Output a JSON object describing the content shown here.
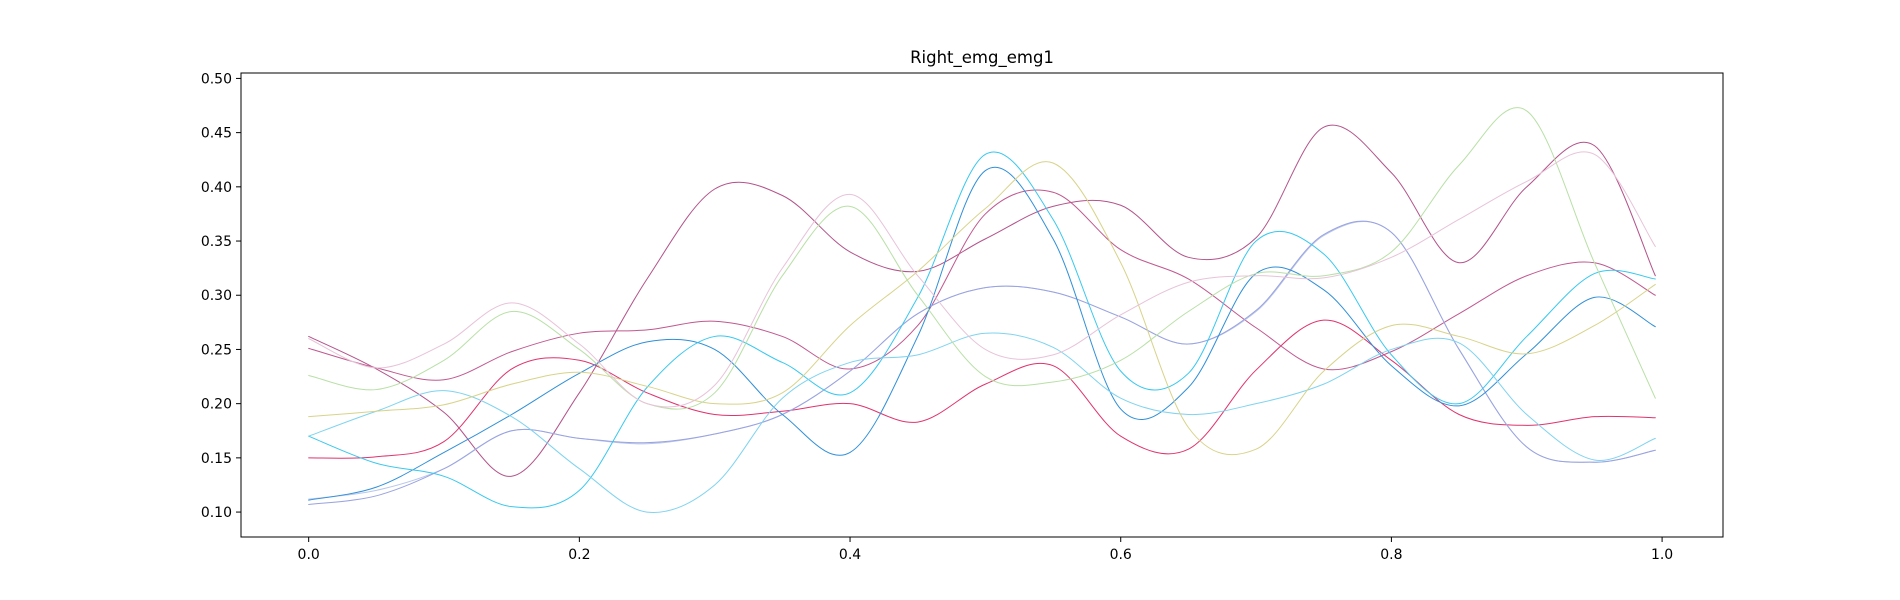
{
  "chart_data": {
    "type": "line",
    "title": "Right_emg_emg1",
    "xlabel": "",
    "ylabel": "",
    "xlim": [
      -0.05,
      1.045
    ],
    "ylim": [
      0.077,
      0.505
    ],
    "xticks": [
      "0.0",
      "0.2",
      "0.4",
      "0.6",
      "0.8",
      "1.0"
    ],
    "yticks": [
      "0.10",
      "0.15",
      "0.20",
      "0.25",
      "0.30",
      "0.35",
      "0.40",
      "0.45",
      "0.50"
    ],
    "grid": false,
    "legend": "none",
    "series": [
      {
        "color": "#e0336e",
        "x": [
          0.0,
          0.05,
          0.1,
          0.15,
          0.2,
          0.25,
          0.3,
          0.35,
          0.4,
          0.45,
          0.5,
          0.55,
          0.6,
          0.65,
          0.7,
          0.75,
          0.8,
          0.85,
          0.9,
          0.95,
          0.995
        ],
        "y": [
          0.15,
          0.151,
          0.165,
          0.232,
          0.24,
          0.21,
          0.19,
          0.193,
          0.2,
          0.183,
          0.218,
          0.235,
          0.17,
          0.158,
          0.231,
          0.277,
          0.24,
          0.19,
          0.18,
          0.188,
          0.187
        ]
      },
      {
        "color": "#b3538a",
        "x": [
          0.0,
          0.05,
          0.1,
          0.15,
          0.2,
          0.25,
          0.3,
          0.35,
          0.4,
          0.45,
          0.5,
          0.55,
          0.6,
          0.65,
          0.7,
          0.75,
          0.8,
          0.85,
          0.9,
          0.95,
          0.995
        ],
        "y": [
          0.262,
          0.232,
          0.192,
          0.133,
          0.21,
          0.315,
          0.398,
          0.392,
          0.34,
          0.322,
          0.352,
          0.382,
          0.383,
          0.335,
          0.353,
          0.455,
          0.413,
          0.33,
          0.4,
          0.438,
          0.318
        ]
      },
      {
        "color": "#c0578f",
        "x": [
          0.0,
          0.05,
          0.1,
          0.15,
          0.2,
          0.25,
          0.3,
          0.35,
          0.4,
          0.45,
          0.5,
          0.55,
          0.6,
          0.65,
          0.7,
          0.75,
          0.8,
          0.85,
          0.9,
          0.95,
          0.995
        ],
        "y": [
          0.251,
          0.233,
          0.222,
          0.248,
          0.265,
          0.268,
          0.276,
          0.262,
          0.232,
          0.272,
          0.375,
          0.395,
          0.342,
          0.315,
          0.27,
          0.232,
          0.248,
          0.283,
          0.318,
          0.33,
          0.3
        ]
      },
      {
        "color": "#b8c6ea",
        "x": [
          0.0,
          0.05,
          0.1,
          0.15,
          0.2,
          0.25,
          0.3,
          0.35,
          0.4,
          0.45,
          0.5,
          0.55,
          0.6,
          0.65,
          0.7,
          0.75,
          0.8,
          0.85,
          0.9,
          0.95,
          0.995
        ],
        "y": [
          0.112,
          0.12,
          0.14,
          0.175,
          0.168,
          0.163,
          0.172,
          0.19,
          0.23,
          0.283,
          0.307,
          0.303,
          0.28,
          0.255,
          0.285,
          0.355,
          0.358,
          0.25,
          0.16,
          0.146,
          0.157
        ]
      },
      {
        "color": "#9aa3e0",
        "x": [
          0.0,
          0.05,
          0.1,
          0.15,
          0.2,
          0.25,
          0.3,
          0.35,
          0.4,
          0.45,
          0.5,
          0.55,
          0.6,
          0.65,
          0.7,
          0.75,
          0.8,
          0.85,
          0.9,
          0.95,
          0.995
        ],
        "y": [
          0.107,
          0.115,
          0.14,
          0.175,
          0.168,
          0.164,
          0.172,
          0.19,
          0.23,
          0.283,
          0.307,
          0.303,
          0.28,
          0.255,
          0.286,
          0.356,
          0.358,
          0.25,
          0.16,
          0.146,
          0.157
        ]
      },
      {
        "color": "#2f8fd8",
        "x": [
          0.0,
          0.05,
          0.1,
          0.15,
          0.2,
          0.25,
          0.3,
          0.35,
          0.4,
          0.45,
          0.5,
          0.55,
          0.6,
          0.65,
          0.7,
          0.75,
          0.8,
          0.85,
          0.9,
          0.95,
          0.995
        ],
        "y": [
          0.111,
          0.123,
          0.155,
          0.19,
          0.228,
          0.257,
          0.25,
          0.19,
          0.155,
          0.262,
          0.415,
          0.352,
          0.195,
          0.215,
          0.32,
          0.305,
          0.235,
          0.198,
          0.246,
          0.298,
          0.271
        ]
      },
      {
        "color": "#37c8ef",
        "x": [
          0.0,
          0.05,
          0.1,
          0.15,
          0.2,
          0.25,
          0.3,
          0.35,
          0.4,
          0.45,
          0.5,
          0.55,
          0.6,
          0.65,
          0.7,
          0.75,
          0.8,
          0.85,
          0.9,
          0.95,
          0.995
        ],
        "y": [
          0.17,
          0.145,
          0.133,
          0.105,
          0.12,
          0.215,
          0.262,
          0.238,
          0.21,
          0.298,
          0.43,
          0.37,
          0.23,
          0.228,
          0.35,
          0.338,
          0.245,
          0.2,
          0.262,
          0.32,
          0.315
        ]
      },
      {
        "color": "#7fd3f0",
        "x": [
          0.0,
          0.05,
          0.1,
          0.15,
          0.2,
          0.25,
          0.3,
          0.35,
          0.4,
          0.45,
          0.5,
          0.55,
          0.6,
          0.65,
          0.7,
          0.75,
          0.8,
          0.85,
          0.9,
          0.95,
          0.995
        ],
        "y": [
          0.17,
          0.193,
          0.212,
          0.188,
          0.14,
          0.1,
          0.125,
          0.205,
          0.238,
          0.245,
          0.265,
          0.252,
          0.205,
          0.19,
          0.2,
          0.218,
          0.25,
          0.256,
          0.19,
          0.148,
          0.168
        ]
      },
      {
        "color": "#d8d38a",
        "x": [
          0.0,
          0.05,
          0.1,
          0.15,
          0.2,
          0.25,
          0.3,
          0.35,
          0.4,
          0.45,
          0.5,
          0.55,
          0.6,
          0.65,
          0.7,
          0.75,
          0.8,
          0.85,
          0.9,
          0.95,
          0.995
        ],
        "y": [
          0.188,
          0.193,
          0.199,
          0.218,
          0.229,
          0.216,
          0.2,
          0.21,
          0.272,
          0.322,
          0.38,
          0.422,
          0.33,
          0.178,
          0.158,
          0.23,
          0.272,
          0.262,
          0.246,
          0.272,
          0.31
        ]
      },
      {
        "color": "#b8e0a6",
        "x": [
          0.0,
          0.05,
          0.1,
          0.15,
          0.2,
          0.25,
          0.3,
          0.35,
          0.4,
          0.45,
          0.5,
          0.55,
          0.6,
          0.65,
          0.7,
          0.75,
          0.8,
          0.85,
          0.9,
          0.95,
          0.995
        ],
        "y": [
          0.226,
          0.213,
          0.24,
          0.285,
          0.25,
          0.2,
          0.21,
          0.318,
          0.382,
          0.3,
          0.225,
          0.22,
          0.24,
          0.285,
          0.32,
          0.318,
          0.34,
          0.42,
          0.47,
          0.33,
          0.205
        ]
      },
      {
        "color": "#e8c3d8",
        "x": [
          0.0,
          0.05,
          0.1,
          0.15,
          0.2,
          0.25,
          0.3,
          0.35,
          0.4,
          0.45,
          0.5,
          0.55,
          0.6,
          0.65,
          0.7,
          0.75,
          0.8,
          0.85,
          0.9,
          0.95,
          0.995
        ],
        "y": [
          0.26,
          0.233,
          0.255,
          0.293,
          0.255,
          0.2,
          0.217,
          0.325,
          0.393,
          0.318,
          0.25,
          0.245,
          0.282,
          0.312,
          0.318,
          0.316,
          0.335,
          0.37,
          0.405,
          0.43,
          0.345
        ]
      }
    ]
  }
}
